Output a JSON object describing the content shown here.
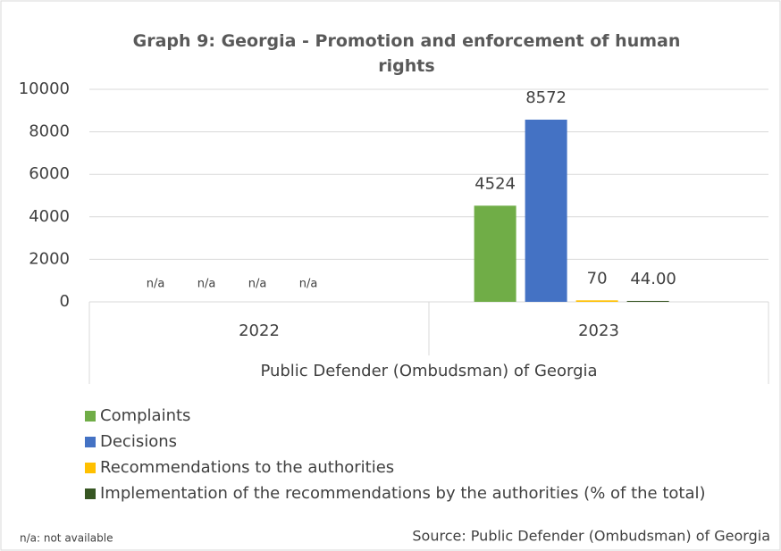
{
  "chart_data": {
    "type": "bar",
    "title": "Graph 9: Georgia - Promotion and enforcement of human rights",
    "categories": [
      "2022",
      "2023"
    ],
    "category_group_label": "Public Defender (Ombudsman) of Georgia",
    "series": [
      {
        "name": "Complaints",
        "color": "#70ad47",
        "values": [
          null,
          4524
        ],
        "value_labels": [
          "n/a",
          "4524"
        ]
      },
      {
        "name": "Decisions",
        "color": "#4472c4",
        "values": [
          null,
          8572
        ],
        "value_labels": [
          "n/a",
          "8572"
        ]
      },
      {
        "name": "Recommendations to the authorities",
        "color": "#ffc000",
        "values": [
          null,
          70
        ],
        "value_labels": [
          "n/a",
          "70"
        ]
      },
      {
        "name": "Implementation of the recommendations by the authorities (% of the total)",
        "color": "#375623",
        "values": [
          null,
          44
        ],
        "value_labels": [
          "n/a",
          "44.00"
        ]
      }
    ],
    "ylim": [
      0,
      10000
    ],
    "yticks": [
      0,
      2000,
      4000,
      6000,
      8000,
      10000
    ],
    "grid": true,
    "legend_position": "bottom",
    "footnote": "n/a: not available",
    "source": "Source: Public Defender (Ombudsman) of Georgia"
  }
}
